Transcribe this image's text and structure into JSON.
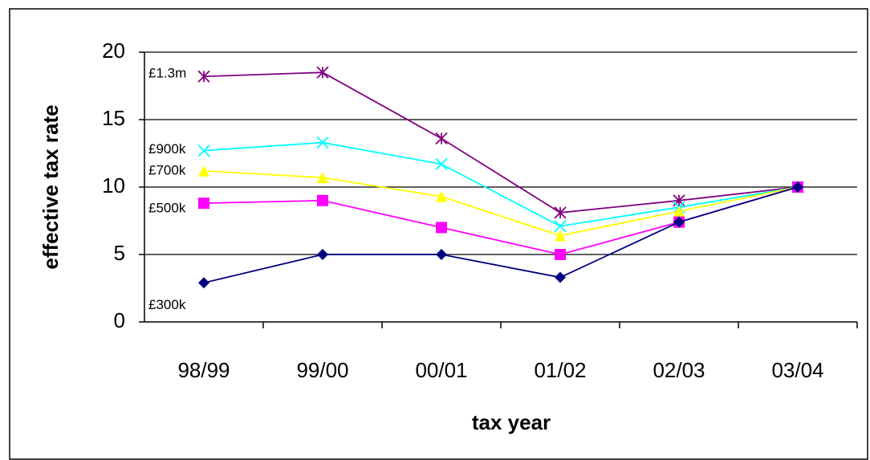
{
  "chart_data": {
    "type": "line",
    "x_label": "tax year",
    "y_label": "effective tax rate",
    "categories": [
      "98/99",
      "99/00",
      "00/01",
      "01/02",
      "02/03",
      "03/04"
    ],
    "series": [
      {
        "name": "£1.3m",
        "color": "#800080",
        "marker": "asterisk",
        "values": [
          18.2,
          18.5,
          13.6,
          8.1,
          9.0,
          10
        ]
      },
      {
        "name": "£900k",
        "color": "#00ffff",
        "marker": "x",
        "values": [
          12.7,
          13.3,
          11.7,
          7.1,
          8.5,
          10
        ]
      },
      {
        "name": "£700k",
        "color": "#ffff00",
        "marker": "triangle",
        "values": [
          11.2,
          10.7,
          9.3,
          6.4,
          8.2,
          10
        ]
      },
      {
        "name": "£500k",
        "color": "#ff00ff",
        "marker": "square",
        "values": [
          8.8,
          9.0,
          7.0,
          5.0,
          7.4,
          10
        ]
      },
      {
        "name": "£300k",
        "color": "#000080",
        "marker": "diamond",
        "values": [
          2.9,
          5.0,
          5.0,
          3.3,
          7.4,
          10
        ]
      }
    ],
    "ylim": [
      0,
      20
    ],
    "yticks": [
      0,
      5,
      10,
      15,
      20
    ],
    "grid": true
  }
}
